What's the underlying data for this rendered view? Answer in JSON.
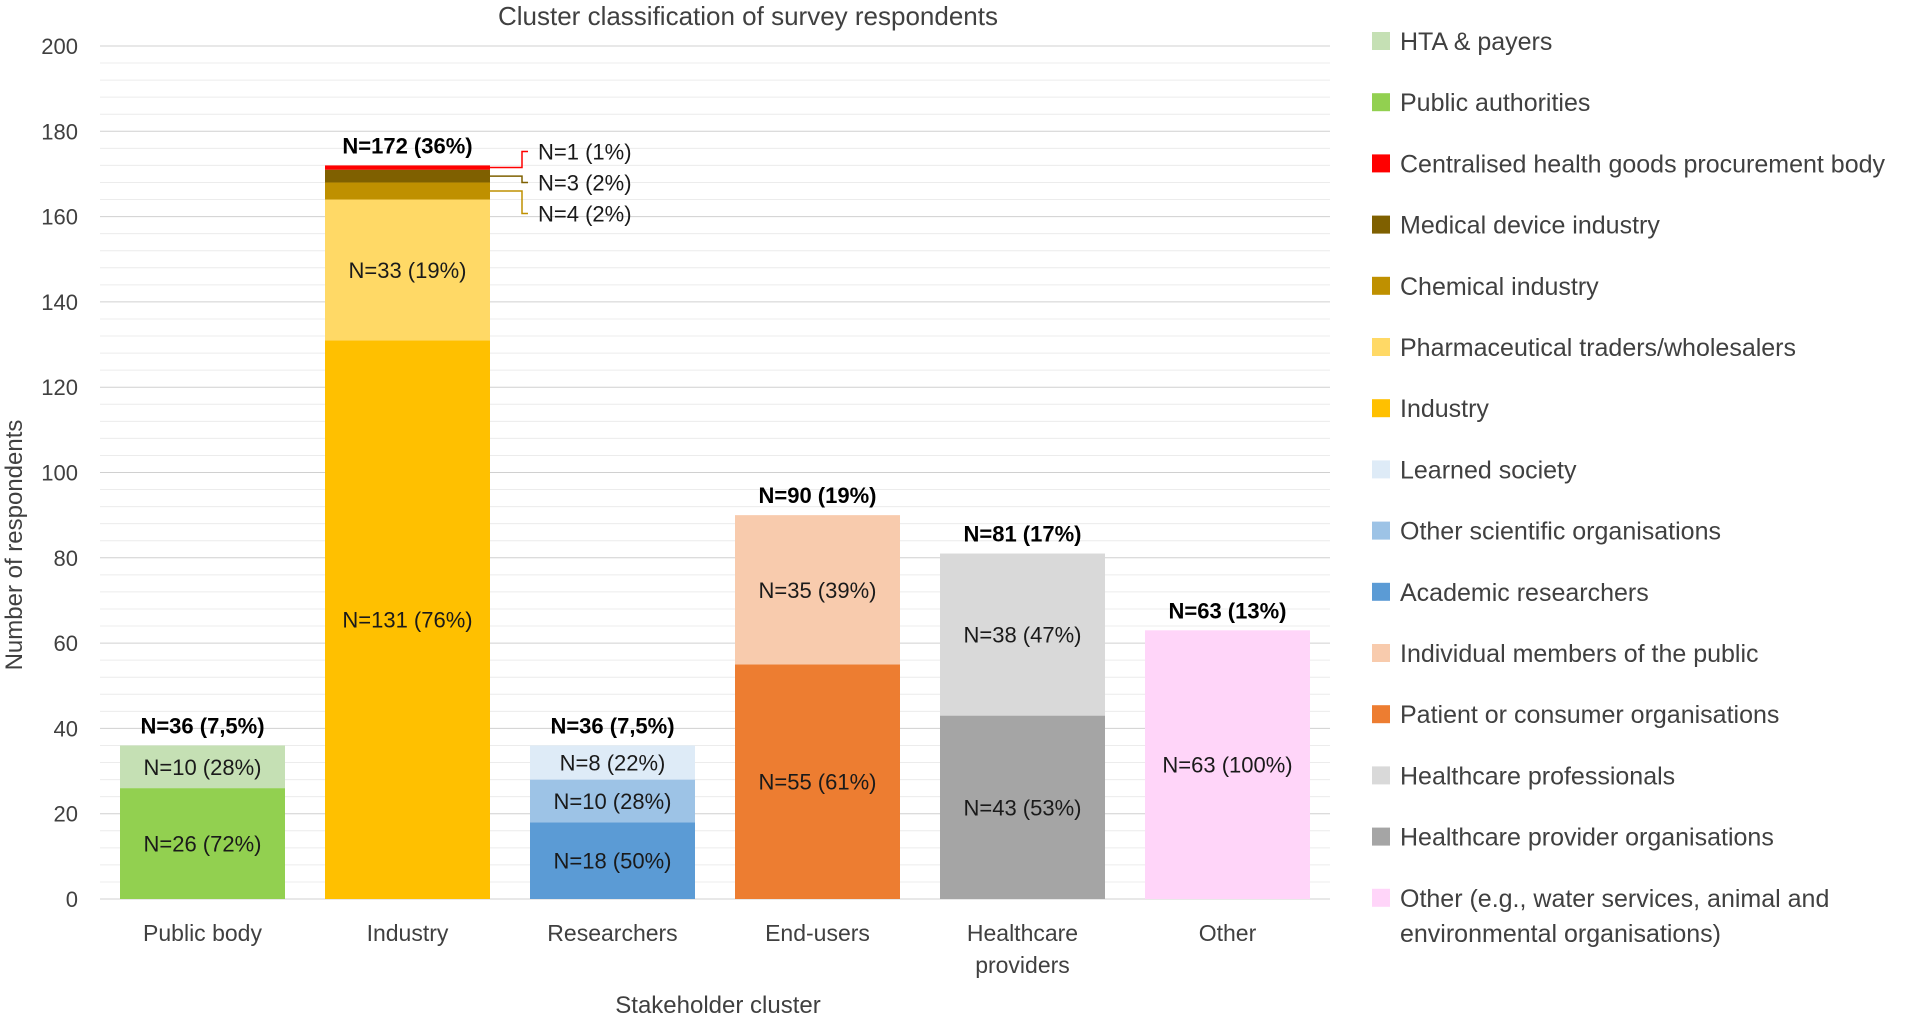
{
  "chart_data": {
    "type": "bar",
    "stacked": true,
    "title": "Cluster classification of survey respondents",
    "xlabel": "Stakeholder cluster",
    "ylabel": "Number of respondents",
    "ylim": [
      0,
      200
    ],
    "yticks": [
      0,
      20,
      40,
      60,
      80,
      100,
      120,
      140,
      160,
      180,
      200
    ],
    "categories": [
      {
        "label": [
          "Public body"
        ],
        "total_label": "N=36 (7,5%)",
        "total": 36
      },
      {
        "label": [
          "Industry"
        ],
        "total_label": "N=172 (36%)",
        "total": 172
      },
      {
        "label": [
          "Researchers"
        ],
        "total_label": "N=36 (7,5%)",
        "total": 36
      },
      {
        "label": [
          "End-users"
        ],
        "total_label": "N=90 (19%)",
        "total": 90
      },
      {
        "label": [
          "Healthcare",
          "providers"
        ],
        "total_label": "N=81 (17%)",
        "total": 81
      },
      {
        "label": [
          "Other"
        ],
        "total_label": "N=63 (13%)",
        "total": 63
      }
    ],
    "series": [
      {
        "name": "HTA & payers",
        "color": "#c5e0b4",
        "values": [
          10,
          0,
          0,
          0,
          0,
          0
        ],
        "labels": [
          "N=10 (28%)",
          "",
          "",
          "",
          "",
          ""
        ]
      },
      {
        "name": "Public authorities",
        "color": "#92d050",
        "values": [
          26,
          0,
          0,
          0,
          0,
          0
        ],
        "labels": [
          "N=26 (72%)",
          "",
          "",
          "",
          "",
          ""
        ]
      },
      {
        "name": "Centralised health goods procurement body",
        "color": "#ff0000",
        "values": [
          0,
          1,
          0,
          0,
          0,
          0
        ],
        "labels": [
          "",
          "N=1 (1%)",
          "",
          "",
          "",
          ""
        ],
        "callout": true
      },
      {
        "name": "Medical device industry",
        "color": "#7f6000",
        "values": [
          0,
          3,
          0,
          0,
          0,
          0
        ],
        "labels": [
          "",
          "N=3 (2%)",
          "",
          "",
          "",
          ""
        ],
        "callout": true
      },
      {
        "name": "Chemical industry",
        "color": "#bf9000",
        "values": [
          0,
          4,
          0,
          0,
          0,
          0
        ],
        "labels": [
          "",
          "N=4 (2%)",
          "",
          "",
          "",
          ""
        ],
        "callout": true
      },
      {
        "name": "Pharmaceutical traders/wholesalers",
        "color": "#ffd966",
        "values": [
          0,
          33,
          0,
          0,
          0,
          0
        ],
        "labels": [
          "",
          "N=33 (19%)",
          "",
          "",
          "",
          ""
        ]
      },
      {
        "name": "Industry",
        "color": "#ffc000",
        "values": [
          0,
          131,
          0,
          0,
          0,
          0
        ],
        "labels": [
          "",
          "N=131 (76%)",
          "",
          "",
          "",
          ""
        ]
      },
      {
        "name": "Learned society",
        "color": "#deebf7",
        "values": [
          0,
          0,
          8,
          0,
          0,
          0
        ],
        "labels": [
          "",
          "",
          "N=8 (22%)",
          "",
          "",
          ""
        ]
      },
      {
        "name": "Other scientific organisations",
        "color": "#9dc3e6",
        "values": [
          0,
          0,
          10,
          0,
          0,
          0
        ],
        "labels": [
          "",
          "",
          "N=10 (28%)",
          "",
          "",
          ""
        ]
      },
      {
        "name": "Academic researchers",
        "color": "#5b9bd5",
        "values": [
          0,
          0,
          18,
          0,
          0,
          0
        ],
        "labels": [
          "",
          "",
          "N=18 (50%)",
          "",
          "",
          ""
        ]
      },
      {
        "name": "Individual members of the public",
        "color": "#f8cbad",
        "values": [
          0,
          0,
          0,
          35,
          0,
          0
        ],
        "labels": [
          "",
          "",
          "",
          "N=35 (39%)",
          "",
          ""
        ]
      },
      {
        "name": "Patient or consumer organisations",
        "color": "#ed7d31",
        "values": [
          0,
          0,
          0,
          55,
          0,
          0
        ],
        "labels": [
          "",
          "",
          "",
          "N=55 (61%)",
          "",
          ""
        ]
      },
      {
        "name": "Healthcare professionals",
        "color": "#d9d9d9",
        "values": [
          0,
          0,
          0,
          0,
          38,
          0
        ],
        "labels": [
          "",
          "",
          "",
          "",
          "N=38 (47%)",
          ""
        ]
      },
      {
        "name": "Healthcare provider organisations",
        "color": "#a5a5a5",
        "values": [
          0,
          0,
          0,
          0,
          43,
          0
        ],
        "labels": [
          "",
          "",
          "",
          "",
          "N=43 (53%)",
          ""
        ]
      },
      {
        "name": "Other (e.g., water services, animal and environmental organisations)",
        "color": "#ffd5f9",
        "values": [
          0,
          0,
          0,
          0,
          0,
          63
        ],
        "labels": [
          "",
          "",
          "",
          "",
          "",
          "N=63 (100%)"
        ]
      }
    ],
    "stack_order_bottom_to_top": [
      "Public authorities",
      "HTA & payers",
      "Industry",
      "Pharmaceutical traders/wholesalers",
      "Chemical industry",
      "Medical device industry",
      "Centralised health goods procurement body",
      "Academic researchers",
      "Other scientific organisations",
      "Learned society",
      "Patient or consumer organisations",
      "Individual members of the public",
      "Healthcare provider organisations",
      "Healthcare professionals",
      "Other (e.g., water services, animal and environmental organisations)"
    ],
    "legend": {
      "position": "right",
      "entries": [
        {
          "name": "HTA & payers",
          "lines": [
            "HTA & payers"
          ]
        },
        {
          "name": "Public authorities",
          "lines": [
            "Public authorities"
          ]
        },
        {
          "name": "Centralised health goods procurement body",
          "lines": [
            "Centralised health goods procurement body"
          ]
        },
        {
          "name": "Medical device industry",
          "lines": [
            "Medical device industry"
          ]
        },
        {
          "name": "Chemical industry",
          "lines": [
            "Chemical industry"
          ]
        },
        {
          "name": "Pharmaceutical traders/wholesalers",
          "lines": [
            "Pharmaceutical traders/wholesalers"
          ]
        },
        {
          "name": "Industry",
          "lines": [
            "Industry"
          ]
        },
        {
          "name": "Learned society",
          "lines": [
            "Learned society"
          ]
        },
        {
          "name": "Other scientific organisations",
          "lines": [
            "Other scientific organisations"
          ]
        },
        {
          "name": "Academic researchers",
          "lines": [
            "Academic researchers"
          ]
        },
        {
          "name": "Individual members of the public",
          "lines": [
            "Individual members of the public"
          ]
        },
        {
          "name": "Patient or consumer organisations",
          "lines": [
            "Patient or consumer organisations"
          ]
        },
        {
          "name": "Healthcare professionals",
          "lines": [
            "Healthcare professionals"
          ]
        },
        {
          "name": "Healthcare provider organisations",
          "lines": [
            "Healthcare provider organisations"
          ]
        },
        {
          "name": "Other (e.g., water services, animal and environmental organisations)",
          "lines": [
            "Other (e.g., water services, animal and",
            "environmental organisations)"
          ]
        }
      ]
    },
    "grid": true
  }
}
